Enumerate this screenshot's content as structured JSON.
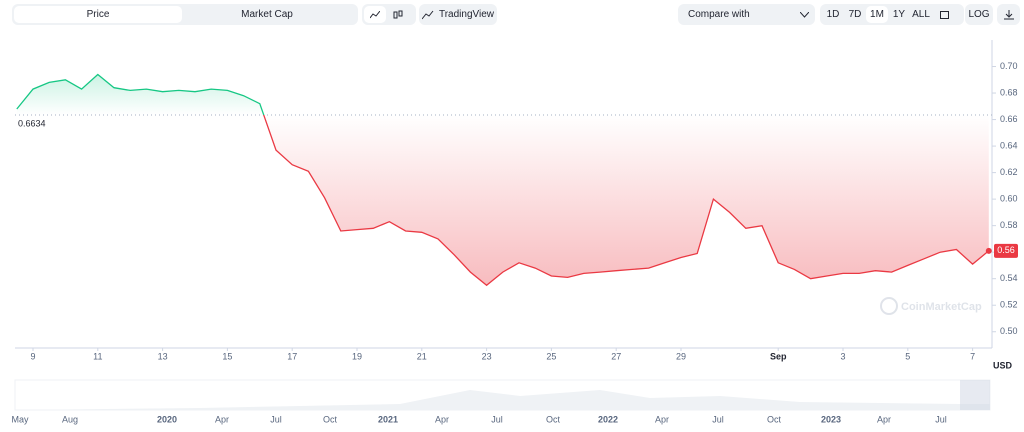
{
  "toolbar": {
    "tabs": [
      "Price",
      "Market Cap"
    ],
    "tradingview": "TradingView",
    "compare": "Compare with",
    "ranges": [
      "1D",
      "7D",
      "1M",
      "1Y",
      "ALL"
    ],
    "log": "LOG"
  },
  "watermark": "CoinMarketCap",
  "navigator": {
    "labels": [
      "May",
      "Aug",
      "2020",
      "Apr",
      "Jul",
      "Oct",
      "2021",
      "Apr",
      "Jul",
      "Oct",
      "2022",
      "Apr",
      "Jul",
      "Oct",
      "2023",
      "Apr",
      "Jul"
    ]
  },
  "chart_data": {
    "type": "line",
    "categories": [
      null,
      "9",
      null,
      null,
      null,
      "11",
      null,
      null,
      null,
      "13",
      null,
      null,
      null,
      "15",
      null,
      null,
      null,
      "17",
      null,
      null,
      null,
      "19",
      null,
      null,
      null,
      "21",
      null,
      null,
      null,
      "23",
      null,
      null,
      null,
      "25",
      null,
      null,
      null,
      "27",
      null,
      null,
      null,
      "29",
      null,
      null,
      null,
      null,
      null,
      "Sep",
      null,
      null,
      null,
      "3",
      null,
      null,
      null,
      "5",
      null,
      null,
      null,
      "7",
      null
    ],
    "values": [
      0.668,
      0.683,
      0.688,
      0.69,
      0.683,
      0.694,
      0.684,
      0.682,
      0.683,
      0.681,
      0.682,
      0.681,
      0.683,
      0.682,
      0.678,
      0.672,
      0.637,
      0.626,
      0.621,
      0.601,
      0.576,
      0.577,
      0.578,
      0.583,
      0.576,
      0.575,
      0.57,
      0.558,
      0.545,
      0.535,
      0.545,
      0.552,
      0.548,
      0.542,
      0.541,
      0.544,
      0.545,
      0.546,
      0.547,
      0.548,
      0.552,
      0.556,
      0.559,
      0.6,
      0.59,
      0.578,
      0.58,
      0.552,
      0.547,
      0.54,
      0.542,
      0.544,
      0.544,
      0.546,
      0.545,
      0.55,
      0.555,
      0.56,
      0.562,
      0.551,
      0.561
    ],
    "baseline": 0.6634,
    "last_label": "0.56",
    "color_up": "#16c784",
    "color_down": "#ea3943",
    "ylim": [
      0.49,
      0.72
    ],
    "yticks": [
      {
        "value": 0.5,
        "label": "0.50"
      },
      0.52,
      0.54,
      0.56,
      0.58,
      {
        "value": 0.6,
        "label": "0.60"
      },
      0.62,
      0.64,
      0.66,
      0.68,
      {
        "value": 0.7,
        "label": "0.70"
      }
    ],
    "y_unit": "USD",
    "grid": false
  }
}
